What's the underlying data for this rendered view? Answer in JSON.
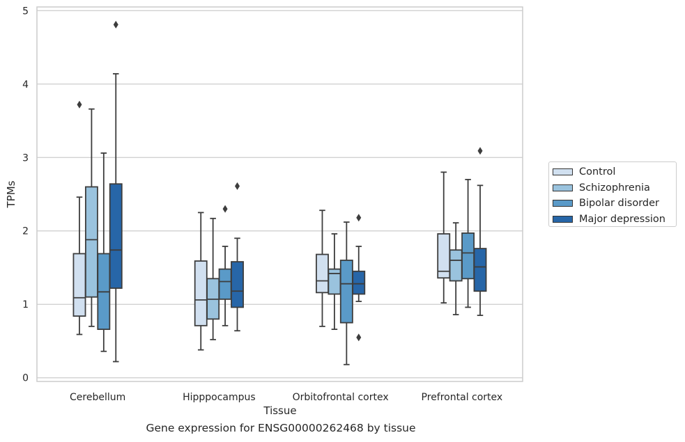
{
  "chart_data": {
    "type": "box",
    "title": "",
    "caption": "Gene expression for ENSG00000262468 by tissue",
    "xlabel": "Tissue",
    "ylabel": "TPMs",
    "ylim": [
      -0.05,
      5.05
    ],
    "yticks": [
      "0",
      "1",
      "2",
      "3",
      "4",
      "5"
    ],
    "grid": "horizontal",
    "legend_position": "right",
    "categories": [
      "Cerebellum",
      "Hipppocampus",
      "Orbitofrontal cortex",
      "Prefrontal cortex"
    ],
    "series": [
      {
        "name": "Control",
        "color": "#d1e0f0",
        "boxes": [
          {
            "whisker_low": 0.59,
            "q1": 0.84,
            "median": 1.09,
            "q3": 1.69,
            "whisker_high": 2.46,
            "outliers": [
              3.72
            ]
          },
          {
            "whisker_low": 0.38,
            "q1": 0.71,
            "median": 1.06,
            "q3": 1.59,
            "whisker_high": 2.25,
            "outliers": []
          },
          {
            "whisker_low": 0.7,
            "q1": 1.16,
            "median": 1.32,
            "q3": 1.68,
            "whisker_high": 2.28,
            "outliers": []
          },
          {
            "whisker_low": 1.02,
            "q1": 1.36,
            "median": 1.45,
            "q3": 1.96,
            "whisker_high": 2.8,
            "outliers": []
          }
        ]
      },
      {
        "name": "Schizophrenia",
        "color": "#9ac3de",
        "boxes": [
          {
            "whisker_low": 0.7,
            "q1": 1.1,
            "median": 1.88,
            "q3": 2.6,
            "whisker_high": 3.66,
            "outliers": []
          },
          {
            "whisker_low": 0.52,
            "q1": 0.8,
            "median": 1.07,
            "q3": 1.35,
            "whisker_high": 2.17,
            "outliers": []
          },
          {
            "whisker_low": 0.66,
            "q1": 1.14,
            "median": 1.42,
            "q3": 1.48,
            "whisker_high": 1.96,
            "outliers": []
          },
          {
            "whisker_low": 0.86,
            "q1": 1.32,
            "median": 1.6,
            "q3": 1.74,
            "whisker_high": 2.11,
            "outliers": []
          }
        ]
      },
      {
        "name": "Bipolar disorder",
        "color": "#5a9ac8",
        "boxes": [
          {
            "whisker_low": 0.36,
            "q1": 0.66,
            "median": 1.17,
            "q3": 1.69,
            "whisker_high": 3.06,
            "outliers": []
          },
          {
            "whisker_low": 0.71,
            "q1": 1.07,
            "median": 1.31,
            "q3": 1.48,
            "whisker_high": 1.79,
            "outliers": [
              2.3
            ]
          },
          {
            "whisker_low": 0.18,
            "q1": 0.75,
            "median": 1.28,
            "q3": 1.6,
            "whisker_high": 2.12,
            "outliers": []
          },
          {
            "whisker_low": 0.96,
            "q1": 1.35,
            "median": 1.7,
            "q3": 1.97,
            "whisker_high": 2.7,
            "outliers": []
          }
        ]
      },
      {
        "name": "Major depression",
        "color": "#2766a8",
        "boxes": [
          {
            "whisker_low": 0.22,
            "q1": 1.22,
            "median": 1.74,
            "q3": 2.64,
            "whisker_high": 4.14,
            "outliers": [
              4.81
            ]
          },
          {
            "whisker_low": 0.64,
            "q1": 0.96,
            "median": 1.18,
            "q3": 1.58,
            "whisker_high": 1.9,
            "outliers": [
              2.61
            ]
          },
          {
            "whisker_low": 1.04,
            "q1": 1.14,
            "median": 1.28,
            "q3": 1.45,
            "whisker_high": 1.79,
            "outliers": [
              2.18,
              0.55
            ]
          },
          {
            "whisker_low": 0.85,
            "q1": 1.18,
            "median": 1.51,
            "q3": 1.76,
            "whisker_high": 2.62,
            "outliers": [
              3.09
            ]
          }
        ]
      }
    ]
  }
}
